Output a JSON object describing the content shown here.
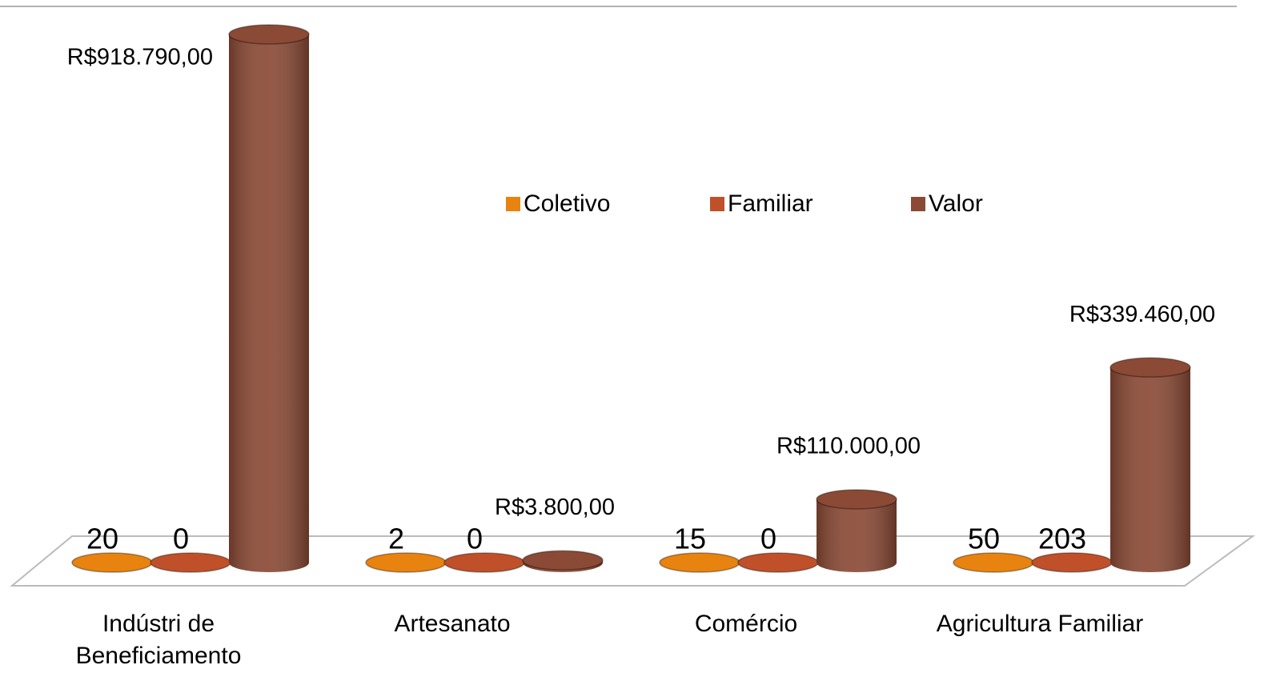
{
  "chart_data": {
    "type": "bar3d",
    "categories": [
      "Indústri de Beneficiamento",
      "Artesanato",
      "Comércio",
      "Agricultura Familiar"
    ],
    "series": [
      {
        "name": "Coletivo",
        "color": "#e8830f",
        "values": [
          20,
          2,
          15,
          50
        ]
      },
      {
        "name": "Familiar",
        "color": "#c0502a",
        "values": [
          0,
          0,
          0,
          203
        ]
      },
      {
        "name": "Valor",
        "color": "#8b4a35",
        "values": [
          918790,
          3800,
          110000,
          339460
        ],
        "value_labels": [
          "R$918.790,00",
          "R$3.800,00",
          "R$110.000,00",
          "R$339.460,00"
        ]
      }
    ],
    "legend": "top-right"
  }
}
